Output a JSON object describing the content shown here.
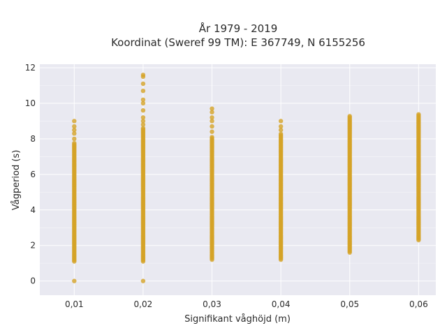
{
  "chart_data": {
    "type": "scatter",
    "title": [
      "År 1979 - 2019",
      "Koordinat (Sweref 99 TM): E 367749, N 6155256"
    ],
    "xlabel": "Signifikant våghöjd (m)",
    "ylabel": "Vågperiod (s)",
    "xlim": [
      0.005,
      0.0625
    ],
    "ylim": [
      -0.8,
      12.2
    ],
    "xticks": [
      0.01,
      0.02,
      0.03,
      0.04,
      0.05,
      0.06
    ],
    "xtick_labels": [
      "0,01",
      "0,02",
      "0,03",
      "0,04",
      "0,05",
      "0,06"
    ],
    "yticks": [
      0,
      2,
      4,
      6,
      8,
      10,
      12
    ],
    "ytick_labels": [
      "0",
      "2",
      "4",
      "6",
      "8",
      "10",
      "12"
    ],
    "grid": true,
    "marker_color": "#d4a327",
    "background": "#e9e9f1",
    "series": [
      {
        "x": 0.01,
        "y_min": 1.1,
        "y_max": 7.8,
        "outliers": [
          0.0,
          8.0,
          8.3,
          8.5,
          8.7,
          9.0
        ]
      },
      {
        "x": 0.02,
        "y_min": 1.1,
        "y_max": 8.6,
        "outliers": [
          0.0,
          8.8,
          9.0,
          9.2,
          9.6,
          10.0,
          10.2,
          10.7,
          11.1,
          11.5,
          11.6
        ]
      },
      {
        "x": 0.03,
        "y_min": 1.2,
        "y_max": 8.1,
        "outliers": [
          8.4,
          8.7,
          9.0,
          9.2,
          9.5,
          9.7
        ]
      },
      {
        "x": 0.04,
        "y_min": 1.2,
        "y_max": 8.3,
        "outliers": [
          8.5,
          8.7,
          9.0
        ]
      },
      {
        "x": 0.05,
        "y_min": 1.6,
        "y_max": 9.3,
        "outliers": []
      },
      {
        "x": 0.06,
        "y_min": 2.3,
        "y_max": 9.4,
        "outliers": []
      }
    ]
  }
}
